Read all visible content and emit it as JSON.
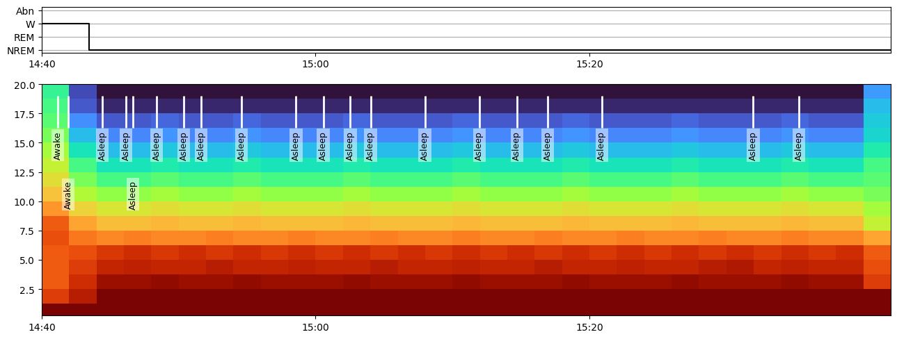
{
  "chart_data": [
    {
      "type": "step",
      "y_categories": [
        "NREM",
        "REM",
        "W",
        "Abn"
      ],
      "x": [
        0,
        3.46,
        62
      ],
      "values": [
        "W",
        "NREM",
        "NREM"
      ],
      "color": "#000000",
      "xlim": [
        0,
        62
      ],
      "xticks": [
        {
          "value": 0,
          "label": "14:40"
        },
        {
          "value": 20,
          "label": "15:00"
        },
        {
          "value": 40,
          "label": "15:20"
        }
      ],
      "ylim": [
        -0.2,
        3.25
      ],
      "grid": "y"
    },
    {
      "type": "heatmap",
      "time_edges": [
        0,
        2,
        4,
        6,
        8,
        10,
        12,
        14,
        16,
        18,
        20,
        22,
        24,
        26,
        28,
        30,
        32,
        34,
        36,
        38,
        40,
        42,
        44,
        46,
        48,
        50,
        52,
        54,
        56,
        58,
        60,
        62
      ],
      "freq_edges": [
        0.25,
        1.25,
        2.5,
        3.75,
        5.0,
        6.25,
        7.5,
        8.75,
        10.0,
        11.25,
        12.5,
        13.75,
        15.0,
        16.25,
        17.5,
        18.75,
        20.0
      ],
      "cell_range": [
        0,
        1
      ],
      "cells": [
        [
          1,
          1,
          1,
          1,
          1,
          1,
          1,
          1,
          1,
          1,
          1,
          1,
          1,
          1,
          1,
          1,
          1,
          1,
          1,
          1,
          1,
          1,
          1,
          1,
          1,
          1,
          1,
          1,
          1,
          1,
          1
        ],
        [
          0.85,
          0.92,
          1,
          1,
          1,
          1,
          1,
          1,
          1,
          1,
          1,
          1,
          1,
          1,
          1,
          1,
          1,
          1,
          1,
          1,
          1,
          1,
          1,
          1,
          1,
          1,
          1,
          1,
          1,
          1,
          1
        ],
        [
          0.8,
          0.88,
          0.96,
          0.96,
          0.97,
          0.96,
          0.96,
          0.97,
          0.96,
          0.96,
          0.96,
          0.97,
          0.96,
          0.96,
          0.96,
          0.97,
          0.96,
          0.96,
          0.96,
          0.97,
          0.96,
          0.96,
          0.96,
          0.97,
          0.96,
          0.96,
          0.96,
          0.97,
          0.96,
          0.96,
          0.85
        ],
        [
          0.8,
          0.85,
          0.9,
          0.91,
          0.9,
          0.9,
          0.92,
          0.9,
          0.9,
          0.91,
          0.9,
          0.9,
          0.92,
          0.9,
          0.9,
          0.91,
          0.9,
          0.9,
          0.92,
          0.9,
          0.9,
          0.91,
          0.9,
          0.9,
          0.92,
          0.93,
          0.9,
          0.91,
          0.9,
          0.9,
          0.82
        ],
        [
          0.8,
          0.82,
          0.86,
          0.88,
          0.86,
          0.88,
          0.86,
          0.88,
          0.86,
          0.88,
          0.86,
          0.88,
          0.86,
          0.88,
          0.86,
          0.88,
          0.86,
          0.88,
          0.86,
          0.88,
          0.86,
          0.88,
          0.86,
          0.88,
          0.86,
          0.88,
          0.86,
          0.88,
          0.86,
          0.88,
          0.8
        ],
        [
          0.82,
          0.76,
          0.74,
          0.75,
          0.74,
          0.74,
          0.75,
          0.74,
          0.74,
          0.75,
          0.74,
          0.74,
          0.75,
          0.74,
          0.74,
          0.75,
          0.74,
          0.74,
          0.75,
          0.74,
          0.74,
          0.75,
          0.74,
          0.74,
          0.75,
          0.74,
          0.74,
          0.75,
          0.74,
          0.74,
          0.7
        ],
        [
          0.8,
          0.7,
          0.66,
          0.66,
          0.67,
          0.66,
          0.66,
          0.67,
          0.66,
          0.66,
          0.66,
          0.67,
          0.66,
          0.66,
          0.66,
          0.67,
          0.66,
          0.66,
          0.66,
          0.67,
          0.66,
          0.66,
          0.66,
          0.67,
          0.66,
          0.66,
          0.66,
          0.67,
          0.66,
          0.66,
          0.55
        ],
        [
          0.72,
          0.62,
          0.58,
          0.58,
          0.6,
          0.58,
          0.58,
          0.6,
          0.58,
          0.58,
          0.58,
          0.6,
          0.58,
          0.58,
          0.58,
          0.6,
          0.58,
          0.58,
          0.58,
          0.6,
          0.58,
          0.58,
          0.58,
          0.6,
          0.58,
          0.58,
          0.58,
          0.6,
          0.58,
          0.58,
          0.5
        ],
        [
          0.65,
          0.52,
          0.48,
          0.48,
          0.5,
          0.48,
          0.48,
          0.5,
          0.48,
          0.48,
          0.48,
          0.5,
          0.48,
          0.48,
          0.48,
          0.5,
          0.48,
          0.48,
          0.48,
          0.5,
          0.48,
          0.48,
          0.48,
          0.5,
          0.48,
          0.48,
          0.48,
          0.5,
          0.48,
          0.48,
          0.45
        ],
        [
          0.6,
          0.45,
          0.4,
          0.4,
          0.42,
          0.4,
          0.4,
          0.42,
          0.4,
          0.4,
          0.4,
          0.42,
          0.4,
          0.4,
          0.4,
          0.42,
          0.4,
          0.4,
          0.4,
          0.42,
          0.4,
          0.4,
          0.4,
          0.42,
          0.4,
          0.4,
          0.4,
          0.42,
          0.4,
          0.4,
          0.42
        ],
        [
          0.55,
          0.4,
          0.33,
          0.33,
          0.35,
          0.33,
          0.33,
          0.35,
          0.33,
          0.33,
          0.33,
          0.35,
          0.33,
          0.33,
          0.33,
          0.35,
          0.33,
          0.33,
          0.33,
          0.35,
          0.33,
          0.33,
          0.33,
          0.35,
          0.33,
          0.33,
          0.33,
          0.35,
          0.33,
          0.33,
          0.4
        ],
        [
          0.5,
          0.33,
          0.25,
          0.25,
          0.27,
          0.25,
          0.25,
          0.27,
          0.25,
          0.25,
          0.25,
          0.27,
          0.25,
          0.25,
          0.25,
          0.27,
          0.25,
          0.25,
          0.25,
          0.27,
          0.25,
          0.25,
          0.25,
          0.27,
          0.25,
          0.25,
          0.25,
          0.27,
          0.25,
          0.25,
          0.35
        ],
        [
          0.45,
          0.25,
          0.17,
          0.17,
          0.19,
          0.17,
          0.17,
          0.19,
          0.17,
          0.17,
          0.17,
          0.19,
          0.17,
          0.17,
          0.17,
          0.19,
          0.17,
          0.17,
          0.17,
          0.19,
          0.17,
          0.17,
          0.17,
          0.19,
          0.17,
          0.17,
          0.17,
          0.19,
          0.17,
          0.17,
          0.3
        ],
        [
          0.42,
          0.18,
          0.1,
          0.1,
          0.12,
          0.1,
          0.1,
          0.12,
          0.1,
          0.1,
          0.1,
          0.12,
          0.1,
          0.1,
          0.1,
          0.12,
          0.1,
          0.1,
          0.1,
          0.12,
          0.1,
          0.1,
          0.1,
          0.12,
          0.1,
          0.1,
          0.1,
          0.12,
          0.1,
          0.1,
          0.28
        ],
        [
          0.4,
          0.1,
          0.03,
          0.03,
          0.03,
          0.03,
          0.03,
          0.03,
          0.03,
          0.03,
          0.03,
          0.03,
          0.03,
          0.03,
          0.03,
          0.03,
          0.03,
          0.03,
          0.03,
          0.03,
          0.03,
          0.03,
          0.03,
          0.03,
          0.03,
          0.03,
          0.03,
          0.03,
          0.03,
          0.03,
          0.25
        ],
        [
          0.38,
          0.08,
          0,
          0,
          0,
          0,
          0,
          0,
          0,
          0,
          0,
          0,
          0,
          0,
          0,
          0,
          0,
          0,
          0,
          0,
          0,
          0,
          0,
          0,
          0,
          0,
          0,
          0,
          0,
          0,
          0.2
        ]
      ],
      "xlim": [
        0,
        62
      ],
      "xticks": [
        {
          "value": 0,
          "label": "14:40"
        },
        {
          "value": 20,
          "label": "15:00"
        },
        {
          "value": 40,
          "label": "15:20"
        }
      ],
      "ylim": [
        0.25,
        20
      ],
      "yticks": [
        2.5,
        5.0,
        7.5,
        10.0,
        12.5,
        15.0,
        17.5,
        20.0
      ],
      "annotation_span": [
        16.3,
        19.0
      ],
      "label_y": 14.8,
      "annotations": [
        {
          "x": 1.17,
          "text": "Awake"
        },
        {
          "x": 1.93,
          "text": "Awake"
        },
        {
          "x": 4.43,
          "text": "Asleep"
        },
        {
          "x": 6.16,
          "text": "Asleep"
        },
        {
          "x": 6.67,
          "text": "Asleep"
        },
        {
          "x": 8.4,
          "text": "Asleep"
        },
        {
          "x": 10.38,
          "text": "Asleep"
        },
        {
          "x": 11.65,
          "text": "Asleep"
        },
        {
          "x": 14.6,
          "text": "Asleep"
        },
        {
          "x": 18.57,
          "text": "Asleep"
        },
        {
          "x": 20.56,
          "text": "Asleep"
        },
        {
          "x": 22.54,
          "text": "Asleep"
        },
        {
          "x": 24.02,
          "text": "Asleep"
        },
        {
          "x": 27.99,
          "text": "Asleep"
        },
        {
          "x": 31.96,
          "text": "Asleep"
        },
        {
          "x": 34.7,
          "text": "Asleep"
        },
        {
          "x": 36.95,
          "text": "Asleep"
        },
        {
          "x": 40.9,
          "text": "Asleep"
        },
        {
          "x": 51.96,
          "text": "Asleep"
        },
        {
          "x": 55.3,
          "text": "Asleep"
        }
      ]
    }
  ]
}
